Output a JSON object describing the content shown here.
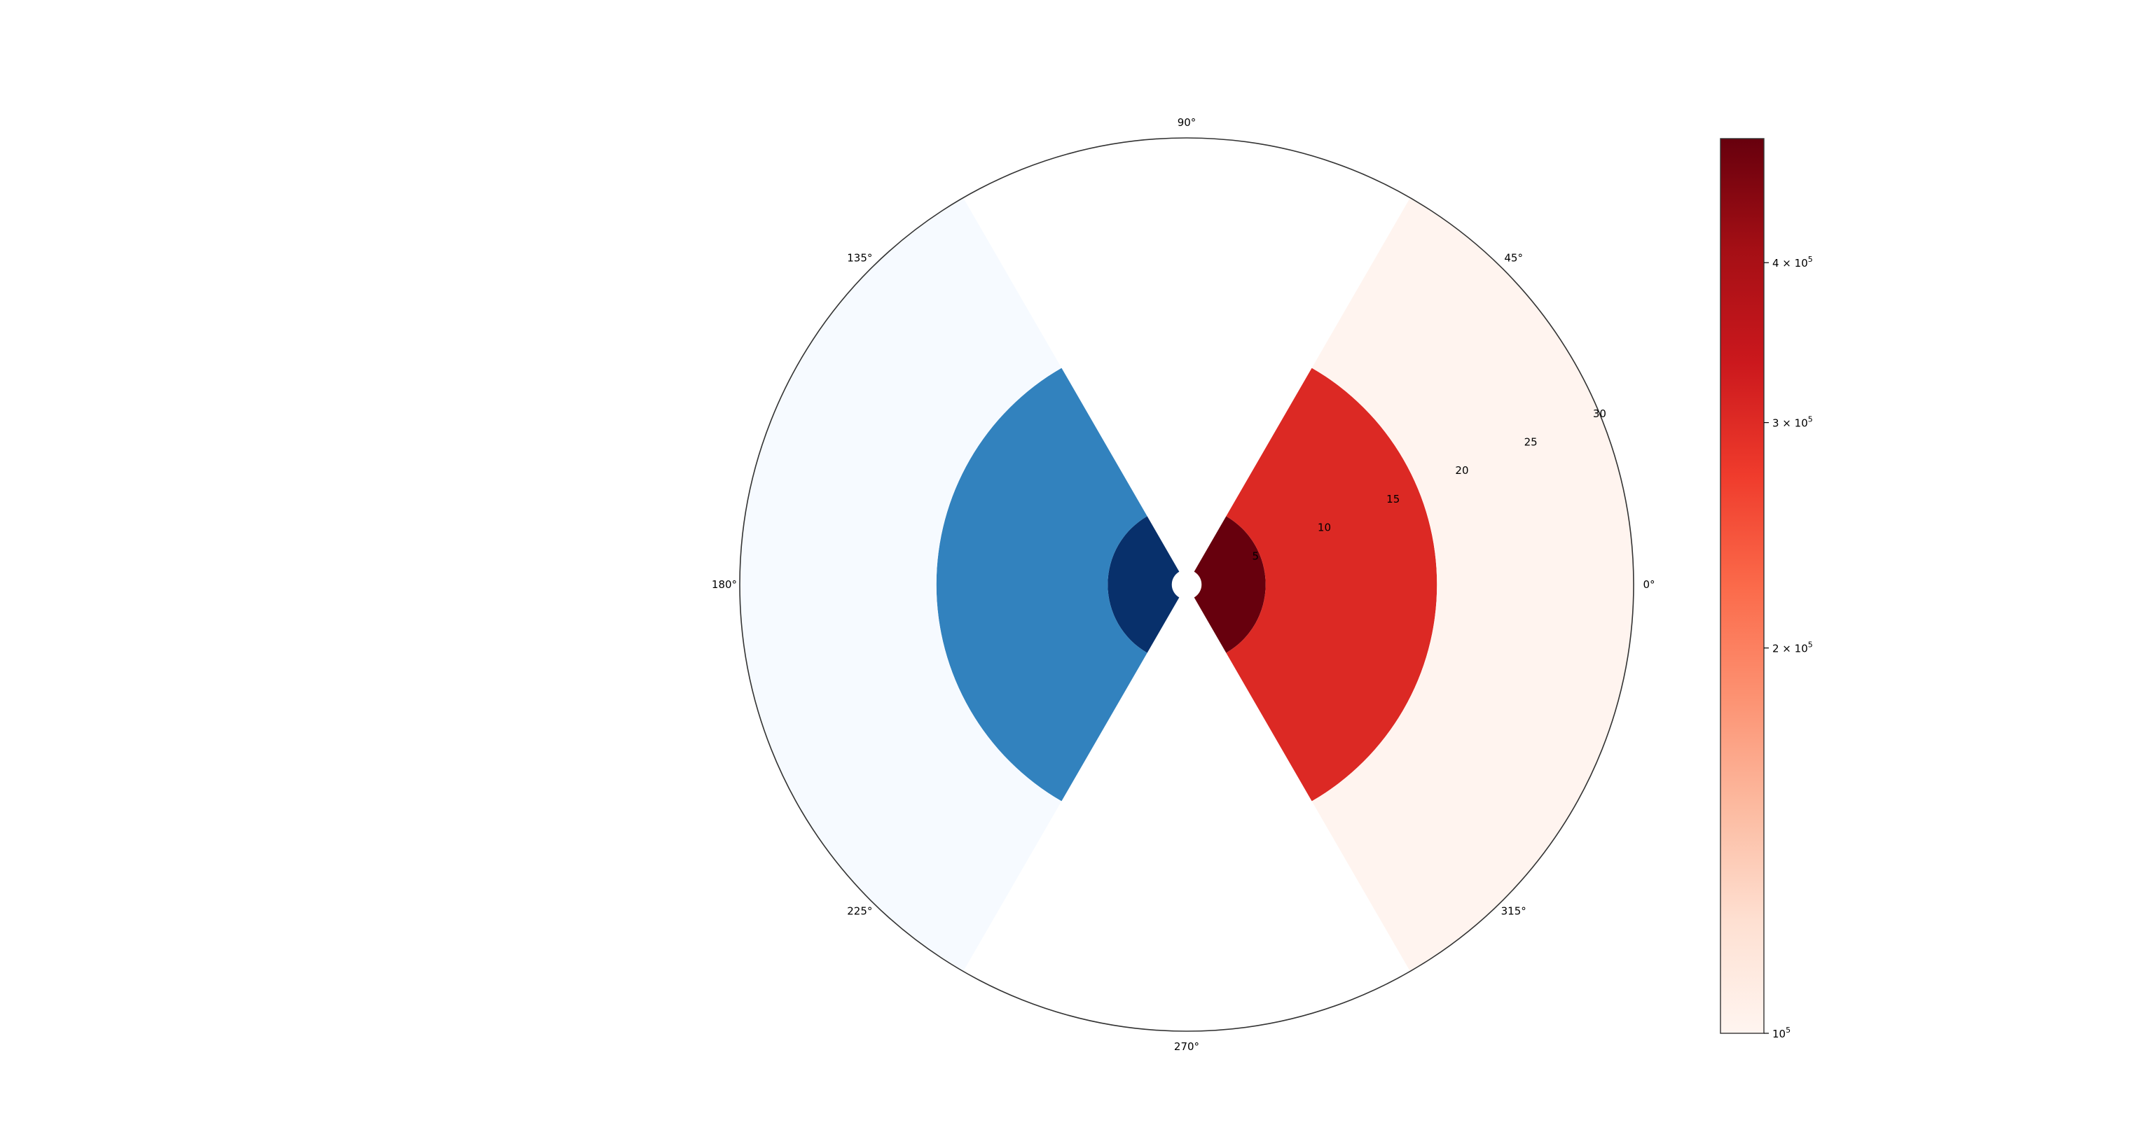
{
  "chart_data": {
    "type": "polar-sector",
    "title": "",
    "angular_ticks": [
      "0°",
      "45°",
      "90°",
      "135°",
      "180°",
      "225°",
      "270°",
      "315°"
    ],
    "radial_ticks": [
      "5",
      "10",
      "15",
      "20",
      "25",
      "30"
    ],
    "radial_tick_values": [
      5,
      10,
      15,
      20,
      25,
      30
    ],
    "r_max": 30,
    "r_label_angle_deg": 22.5,
    "sectors": [
      {
        "side": "right",
        "cmap": "Reds",
        "theta_start_deg": -60,
        "theta_end_deg": 60,
        "r_inner": 1,
        "r_outer": 5.3,
        "value": 480000,
        "color": "#67000d"
      },
      {
        "side": "right",
        "cmap": "Reds",
        "theta_start_deg": -60,
        "theta_end_deg": 60,
        "r_inner": 5.3,
        "r_outer": 16.8,
        "value": 290000,
        "color": "#dc2924"
      },
      {
        "side": "right",
        "cmap": "Reds",
        "theta_start_deg": -60,
        "theta_end_deg": 60,
        "r_inner": 16.8,
        "r_outer": 30,
        "value": 100000,
        "color": "#fff4ef"
      },
      {
        "side": "left",
        "cmap": "Blues",
        "theta_start_deg": 120,
        "theta_end_deg": 240,
        "r_inner": 1,
        "r_outer": 5.3,
        "color": "#08306b"
      },
      {
        "side": "left",
        "cmap": "Blues",
        "theta_start_deg": 120,
        "theta_end_deg": 240,
        "r_inner": 5.3,
        "r_outer": 16.8,
        "color": "#3282be"
      },
      {
        "side": "left",
        "cmap": "Blues",
        "theta_start_deg": 120,
        "theta_end_deg": 240,
        "r_inner": 16.8,
        "r_outer": 30,
        "color": "#f6faff"
      }
    ],
    "colorbar": {
      "cmap": "Reds",
      "scale": "log",
      "min": 100000,
      "max": 500000,
      "ticks": [
        {
          "value": 100000,
          "base": "10",
          "exp": "5"
        },
        {
          "value": 200000,
          "base": "2 × 10",
          "exp": "5"
        },
        {
          "value": 300000,
          "base": "3 × 10",
          "exp": "5"
        },
        {
          "value": 400000,
          "base": "4 × 10",
          "exp": "5"
        }
      ],
      "stops": [
        "#fff5f0",
        "#fee0d2",
        "#fcbba1",
        "#fc9272",
        "#fb6a4a",
        "#ef3b2c",
        "#cb181d",
        "#a50f15",
        "#67000d"
      ]
    }
  }
}
